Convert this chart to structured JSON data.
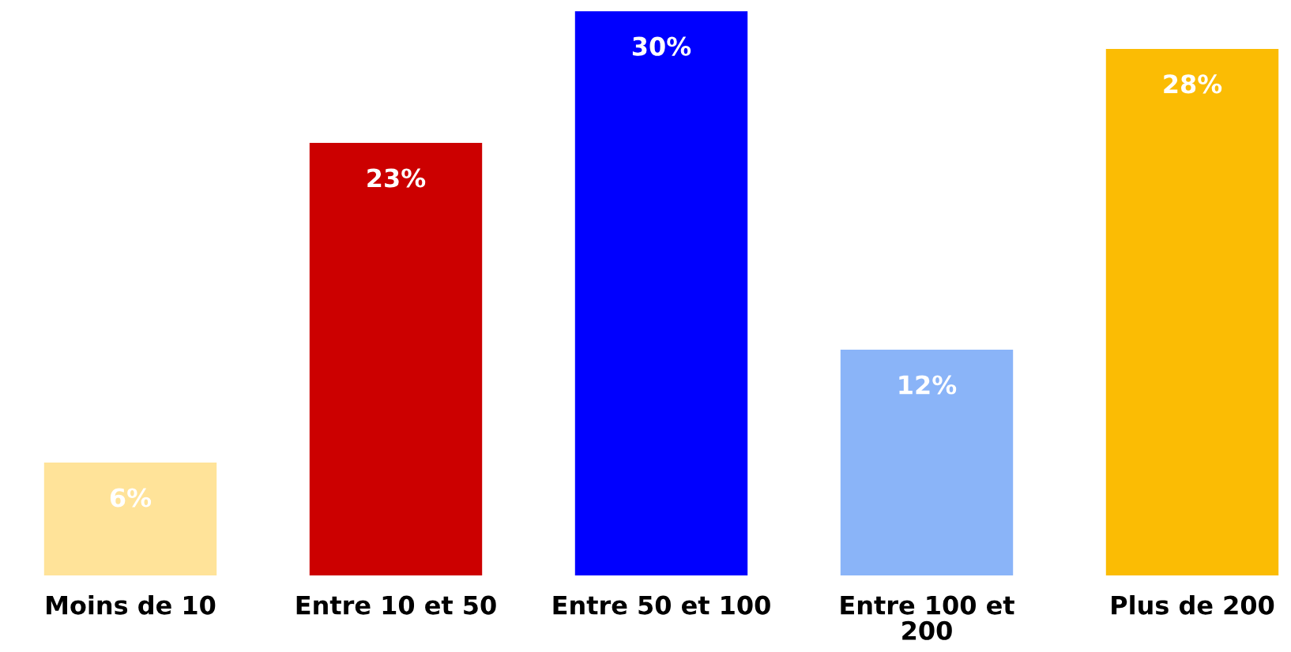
{
  "chart_data": {
    "type": "bar",
    "categories": [
      "Moins de 10",
      "Entre 10 et 50",
      "Entre 50 et 100",
      "Entre 100 et\n200",
      "Plus de 200"
    ],
    "values": [
      6,
      23,
      30,
      12,
      28
    ],
    "colors": [
      "#ffe399",
      "#cc0000",
      "#0000ff",
      "#8ab4f8",
      "#fbbc04"
    ],
    "value_labels": [
      "6%",
      "23%",
      "30%",
      "12%",
      "28%"
    ],
    "tick_labels": "x",
    "grid": false
  }
}
